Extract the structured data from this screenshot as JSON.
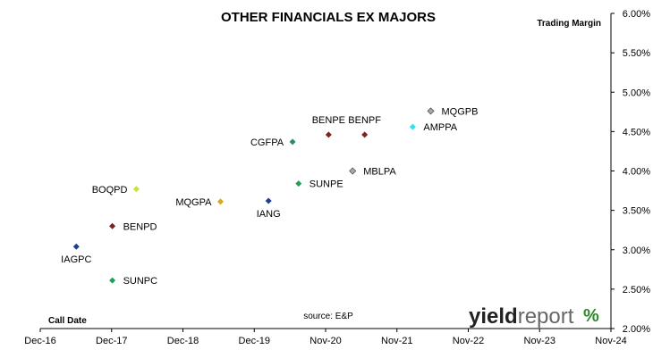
{
  "chart_data": {
    "type": "scatter",
    "title": "OTHER FINANCIALS EX MAJORS",
    "xlabel": "Call Date",
    "ylabel": "Trading  Margin",
    "source": "source: E&P",
    "logo": {
      "main": "yield",
      "second": "report",
      "symbol": "%"
    },
    "x_ticks": [
      "Dec-16",
      "Dec-17",
      "Dec-18",
      "Dec-19",
      "Nov-20",
      "Nov-21",
      "Nov-22",
      "Nov-23",
      "Nov-24"
    ],
    "y_ticks": [
      "2.00%",
      "2.50%",
      "3.00%",
      "3.50%",
      "4.00%",
      "4.50%",
      "5.00%",
      "5.50%",
      "6.00%"
    ],
    "xlim": [
      "2016-12",
      "2024-11"
    ],
    "ylim": [
      2.0,
      6.0
    ],
    "grid": false,
    "legend": "none",
    "points": [
      {
        "label": "IAGPC",
        "x": "2017-06",
        "y": 3.04,
        "color": "#1f3f8f",
        "label_pos": "below"
      },
      {
        "label": "SUNPC",
        "x": "2017-12",
        "y": 2.61,
        "color": "#21a05a",
        "label_pos": "right"
      },
      {
        "label": "BENPD",
        "x": "2017-12",
        "y": 3.3,
        "color": "#7a2424",
        "label_pos": "right"
      },
      {
        "label": "BOQPD",
        "x": "2018-04",
        "y": 3.77,
        "color": "#ccdd44",
        "label_pos": "left"
      },
      {
        "label": "MQGPA",
        "x": "2019-06",
        "y": 3.61,
        "color": "#d4a820",
        "label_pos": "left"
      },
      {
        "label": "IANG",
        "x": "2020-02",
        "y": 3.62,
        "color": "#1f3f8f",
        "label_pos": "below"
      },
      {
        "label": "CGFPA",
        "x": "2020-06",
        "y": 4.37,
        "color": "#2e8b6a",
        "label_pos": "left"
      },
      {
        "label": "SUNPE",
        "x": "2020-07",
        "y": 3.84,
        "color": "#21a05a",
        "label_pos": "right"
      },
      {
        "label": "BENPE",
        "x": "2020-12",
        "y": 4.46,
        "color": "#7a2424",
        "label_pos": "above"
      },
      {
        "label": "MBLPA",
        "x": "2021-04",
        "y": 4.0,
        "color": "#aaaaaa",
        "label_pos": "right"
      },
      {
        "label": "BENPF",
        "x": "2021-06",
        "y": 4.46,
        "color": "#7a2424",
        "label_pos": "above"
      },
      {
        "label": "AMPPA",
        "x": "2022-02",
        "y": 4.56,
        "color": "#33e0f0",
        "label_pos": "right"
      },
      {
        "label": "MQGPB",
        "x": "2022-05",
        "y": 4.76,
        "color": "#aaaaaa",
        "label_pos": "right"
      }
    ]
  },
  "colors": {
    "logo_text": "#222222",
    "logo_report": "#666666",
    "logo_percent_a": "#2a8a2a",
    "logo_percent_b": "#c02020"
  }
}
